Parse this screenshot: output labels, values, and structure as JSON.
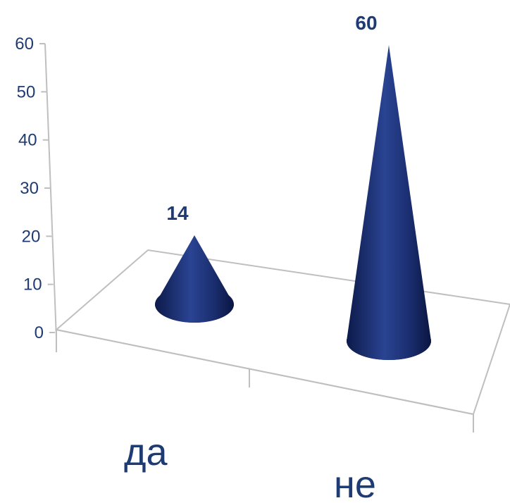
{
  "chart_data": {
    "type": "bar",
    "style": "3d-cone",
    "categories": [
      "да",
      "не"
    ],
    "values": [
      14,
      60
    ],
    "yticks": [
      "0",
      "10",
      "20",
      "30",
      "40",
      "50",
      "60"
    ],
    "ylim": [
      0,
      60
    ],
    "title": "",
    "xlabel": "",
    "ylabel": "",
    "grid": false,
    "legend": "none",
    "colors": {
      "cone": "#1c2f6b",
      "axis": "#bfbfbf",
      "text": "#1f3b73"
    }
  }
}
